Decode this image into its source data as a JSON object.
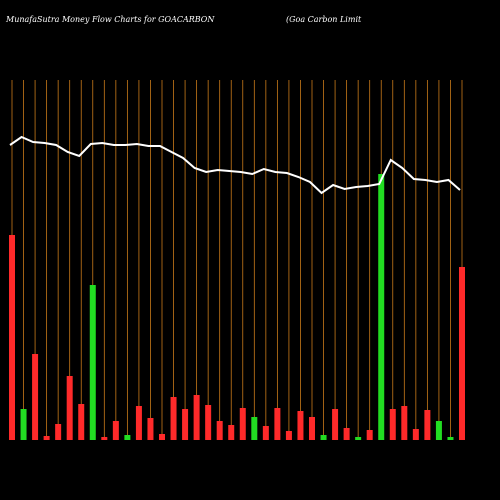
{
  "chart_data": {
    "type": "bar",
    "title": "MunafaSutra  Money Flow  Charts for GOACARBON",
    "subtitle": "(Goa  Carbon  Limit",
    "ylim": [
      0,
      360
    ],
    "grid": true,
    "grid_color": "#c87a1a",
    "series": [
      {
        "name": "Money Flow",
        "type": "bar",
        "colors": [
          "#ff2a2a",
          "#22dd22",
          "#ff2a2a",
          "#ff2a2a",
          "#ff2a2a",
          "#ff2a2a",
          "#ff2a2a",
          "#22dd22",
          "#ff2a2a",
          "#ff2a2a",
          "#22dd22",
          "#ff2a2a",
          "#ff2a2a",
          "#ff2a2a",
          "#ff2a2a",
          "#ff2a2a",
          "#ff2a2a",
          "#ff2a2a",
          "#ff2a2a",
          "#ff2a2a",
          "#ff2a2a",
          "#22dd22",
          "#ff2a2a",
          "#ff2a2a",
          "#ff2a2a",
          "#ff2a2a",
          "#ff2a2a",
          "#22dd22",
          "#ff2a2a",
          "#ff2a2a",
          "#22dd22",
          "#ff2a2a",
          "#22dd22",
          "#ff2a2a",
          "#ff2a2a",
          "#ff2a2a",
          "#ff2a2a",
          "#22dd22",
          "#22dd22",
          "#ff2a2a"
        ],
        "values": [
          205,
          31,
          86,
          4,
          16,
          64,
          36,
          155,
          3,
          19,
          5,
          34,
          22,
          6,
          43,
          31,
          45,
          35,
          19,
          15,
          32,
          23,
          14,
          32,
          9,
          29,
          23,
          5,
          31,
          12,
          3,
          10,
          266,
          31,
          34,
          11,
          30,
          19,
          3,
          173
        ]
      },
      {
        "name": "Price",
        "type": "line",
        "color": "#ffffff",
        "values": [
          295,
          303,
          298,
          297,
          295,
          288,
          284,
          296,
          297,
          295,
          295,
          296,
          294,
          294,
          288,
          282,
          272,
          268,
          270,
          269,
          268,
          266,
          271,
          268,
          267,
          263,
          258,
          247,
          255,
          251,
          253,
          254,
          256,
          280,
          272,
          261,
          260,
          258,
          260,
          250
        ]
      }
    ]
  }
}
